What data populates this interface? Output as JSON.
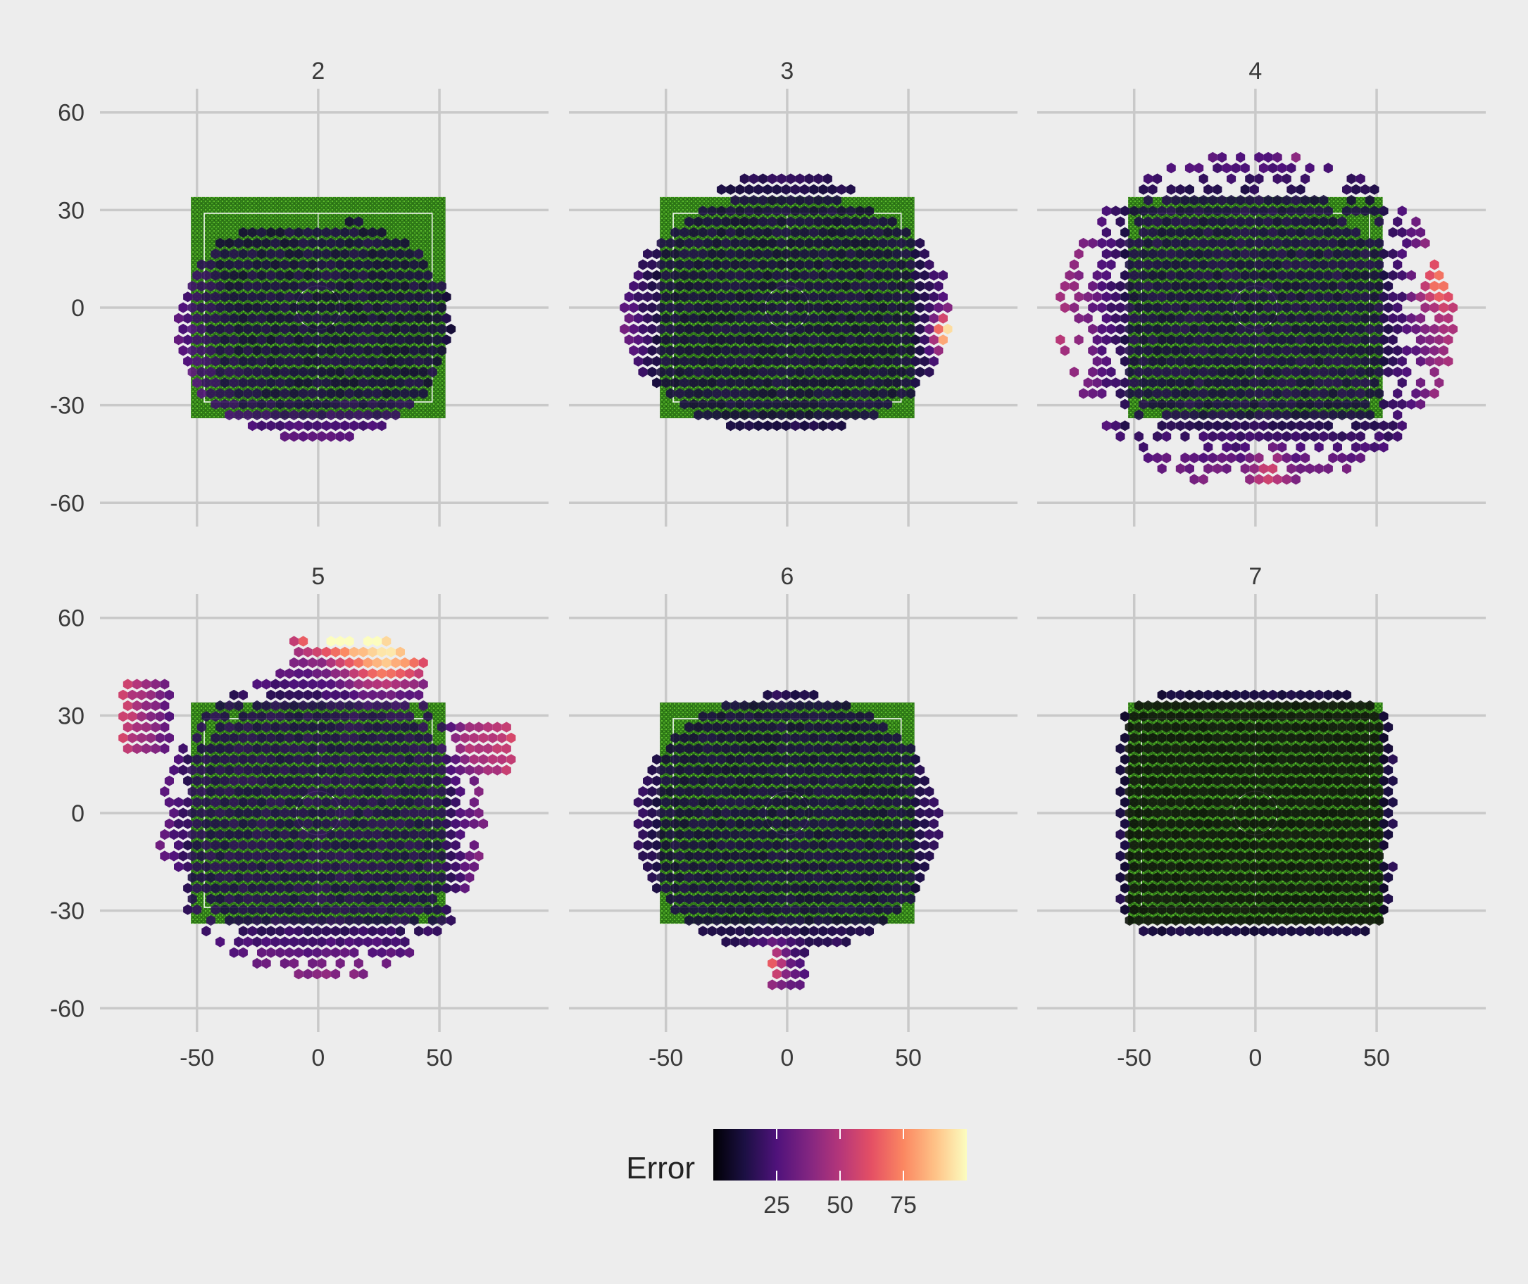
{
  "chart_data": {
    "type": "heatmap",
    "subtype": "faceted hexbin with pitch underlay",
    "facets": [
      "2",
      "3",
      "4",
      "5",
      "6",
      "7"
    ],
    "facet_layout": {
      "rows": 2,
      "cols": 3
    },
    "x_ticks": [
      -50,
      0,
      50
    ],
    "y_ticks": [
      60,
      30,
      0,
      -30,
      -60
    ],
    "x_tick_labels": [
      "-50",
      "0",
      "50"
    ],
    "y_tick_labels": [
      "60",
      "30",
      "0",
      "-30",
      "-60"
    ],
    "xlim": [
      -90,
      95
    ],
    "ylim": [
      -66,
      66
    ],
    "pitch_extent": {
      "x": [
        -52.5,
        52.5
      ],
      "y": [
        -34,
        34
      ]
    },
    "grid": true,
    "legend": {
      "title": "Error",
      "position": "bottom",
      "scale": "magma",
      "range": [
        0,
        100
      ],
      "ticks": [
        25,
        50,
        75
      ],
      "tick_labels": [
        "25",
        "50",
        "75"
      ]
    },
    "colors": {
      "background": "#EDEDED",
      "grid": "#C9C9C9",
      "pitch_green": "#3f8f1e",
      "magma_stops": [
        "#000004",
        "#1c1044",
        "#4f127b",
        "#812581",
        "#b5367a",
        "#e55064",
        "#fb8761",
        "#fec287",
        "#fcfdbf"
      ]
    },
    "facet_descriptions": {
      "2": "cloud biased to the left and bottom; green pitch visible in upper left",
      "3": "covers most of the pitch; orange hotspot near right edge around y=-10",
      "4": "wide scattered cloud beyond the pitch, purple fringes",
      "5": "high error (yellow/orange) above the pitch near x=0..40, y=40..60",
      "6": "mostly dark covering pitch; magenta tail below center",
      "7": "uniformly dark, tightly covering the pitch"
    }
  }
}
